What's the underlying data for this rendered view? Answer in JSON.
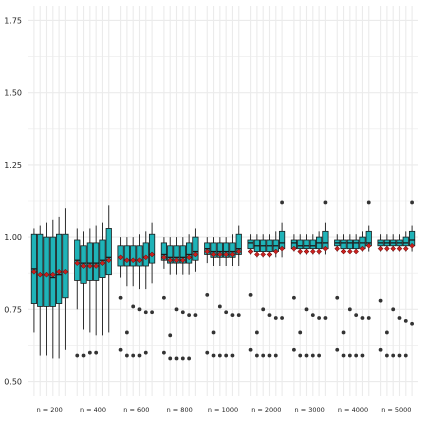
{
  "chart_data": {
    "type": "boxplot",
    "title": "",
    "xlabel": "",
    "ylabel": "",
    "ylim": [
      0.45,
      1.8
    ],
    "yticks": [
      "0.50",
      "0.75",
      "1.00",
      "1.25",
      "1.50",
      "1.75"
    ],
    "grid": true,
    "legend": "none",
    "groups": [
      {
        "label": "n = 200",
        "boxes": [
          {
            "whisker_low": 0.67,
            "q1": 0.77,
            "median": 0.89,
            "q3": 1.01,
            "whisker_high": 1.03,
            "mean": 0.88
          },
          {
            "whisker_low": 0.59,
            "q1": 0.76,
            "median": 0.87,
            "q3": 1.01,
            "whisker_high": 1.04,
            "mean": 0.87
          },
          {
            "whisker_low": 0.59,
            "q1": 0.76,
            "median": 0.87,
            "q3": 1.0,
            "whisker_high": 1.05,
            "mean": 0.87
          },
          {
            "whisker_low": 0.58,
            "q1": 0.76,
            "median": 0.86,
            "q3": 1.0,
            "whisker_high": 1.06,
            "mean": 0.87
          },
          {
            "whisker_low": 0.58,
            "q1": 0.77,
            "median": 0.87,
            "q3": 1.01,
            "whisker_high": 1.07,
            "mean": 0.88
          },
          {
            "whisker_low": 0.61,
            "q1": 0.79,
            "median": 0.88,
            "q3": 1.01,
            "whisker_high": 1.1,
            "mean": 0.88
          }
        ],
        "outliers": []
      },
      {
        "label": "n = 400",
        "boxes": [
          {
            "whisker_low": 0.75,
            "q1": 0.85,
            "median": 0.92,
            "q3": 0.99,
            "whisker_high": 1.03,
            "mean": 0.91
          },
          {
            "whisker_low": 0.68,
            "q1": 0.84,
            "median": 0.91,
            "q3": 0.97,
            "whisker_high": 1.02,
            "mean": 0.9
          },
          {
            "whisker_low": 0.67,
            "q1": 0.85,
            "median": 0.91,
            "q3": 0.98,
            "whisker_high": 1.03,
            "mean": 0.9
          },
          {
            "whisker_low": 0.66,
            "q1": 0.85,
            "median": 0.91,
            "q3": 0.98,
            "whisker_high": 1.04,
            "mean": 0.9
          },
          {
            "whisker_low": 0.66,
            "q1": 0.86,
            "median": 0.92,
            "q3": 0.99,
            "whisker_high": 1.05,
            "mean": 0.91
          },
          {
            "whisker_low": 0.67,
            "q1": 0.87,
            "median": 0.93,
            "q3": 1.03,
            "whisker_high": 1.11,
            "mean": 0.92
          }
        ],
        "outliers": [
          0.59,
          0.59,
          0.6,
          0.6
        ]
      },
      {
        "label": "n = 600",
        "boxes": [
          {
            "whisker_low": 0.86,
            "q1": 0.9,
            "median": 0.93,
            "q3": 0.97,
            "whisker_high": 1.0,
            "mean": 0.93
          },
          {
            "whisker_low": 0.83,
            "q1": 0.9,
            "median": 0.92,
            "q3": 0.97,
            "whisker_high": 1.0,
            "mean": 0.92
          },
          {
            "whisker_low": 0.83,
            "q1": 0.9,
            "median": 0.92,
            "q3": 0.97,
            "whisker_high": 1.0,
            "mean": 0.92
          },
          {
            "whisker_low": 0.82,
            "q1": 0.9,
            "median": 0.92,
            "q3": 0.97,
            "whisker_high": 1.01,
            "mean": 0.92
          },
          {
            "whisker_low": 0.82,
            "q1": 0.9,
            "median": 0.93,
            "q3": 0.98,
            "whisker_high": 1.02,
            "mean": 0.93
          },
          {
            "whisker_low": 0.84,
            "q1": 0.91,
            "median": 0.94,
            "q3": 1.01,
            "whisker_high": 1.05,
            "mean": 0.94
          }
        ],
        "outliers": [
          0.79,
          0.67,
          0.76,
          0.75,
          0.74,
          0.74,
          0.61,
          0.59,
          0.59,
          0.59,
          0.6
        ]
      },
      {
        "label": "n = 800",
        "boxes": [
          {
            "whisker_low": 0.89,
            "q1": 0.92,
            "median": 0.94,
            "q3": 0.98,
            "whisker_high": 1.0,
            "mean": 0.93
          },
          {
            "whisker_low": 0.87,
            "q1": 0.91,
            "median": 0.93,
            "q3": 0.97,
            "whisker_high": 1.0,
            "mean": 0.92
          },
          {
            "whisker_low": 0.87,
            "q1": 0.91,
            "median": 0.93,
            "q3": 0.97,
            "whisker_high": 1.0,
            "mean": 0.92
          },
          {
            "whisker_low": 0.87,
            "q1": 0.91,
            "median": 0.93,
            "q3": 0.97,
            "whisker_high": 1.0,
            "mean": 0.92
          },
          {
            "whisker_low": 0.87,
            "q1": 0.91,
            "median": 0.94,
            "q3": 0.98,
            "whisker_high": 1.01,
            "mean": 0.93
          },
          {
            "whisker_low": 0.88,
            "q1": 0.92,
            "median": 0.95,
            "q3": 1.0,
            "whisker_high": 1.03,
            "mean": 0.94
          }
        ],
        "outliers": [
          0.79,
          0.66,
          0.75,
          0.74,
          0.73,
          0.73,
          0.6,
          0.58,
          0.58,
          0.58,
          0.58
        ]
      },
      {
        "label": "n = 1000",
        "boxes": [
          {
            "whisker_low": 0.91,
            "q1": 0.94,
            "median": 0.96,
            "q3": 0.98,
            "whisker_high": 1.0,
            "mean": 0.95
          },
          {
            "whisker_low": 0.9,
            "q1": 0.93,
            "median": 0.95,
            "q3": 0.98,
            "whisker_high": 1.0,
            "mean": 0.94
          },
          {
            "whisker_low": 0.9,
            "q1": 0.93,
            "median": 0.95,
            "q3": 0.98,
            "whisker_high": 1.0,
            "mean": 0.94
          },
          {
            "whisker_low": 0.9,
            "q1": 0.93,
            "median": 0.95,
            "q3": 0.98,
            "whisker_high": 1.0,
            "mean": 0.94
          },
          {
            "whisker_low": 0.9,
            "q1": 0.93,
            "median": 0.95,
            "q3": 0.98,
            "whisker_high": 1.01,
            "mean": 0.94
          },
          {
            "whisker_low": 0.9,
            "q1": 0.94,
            "median": 0.96,
            "q3": 1.01,
            "whisker_high": 1.04,
            "mean": 0.95
          }
        ],
        "outliers": [
          0.8,
          0.67,
          0.76,
          0.74,
          0.73,
          0.73,
          0.6,
          0.59,
          0.59,
          0.59,
          0.59
        ]
      },
      {
        "label": "n = 2000",
        "boxes": [
          {
            "whisker_low": 0.94,
            "q1": 0.96,
            "median": 0.98,
            "q3": 0.99,
            "whisker_high": 1.01,
            "mean": 0.95
          },
          {
            "whisker_low": 0.93,
            "q1": 0.95,
            "median": 0.97,
            "q3": 0.99,
            "whisker_high": 1.01,
            "mean": 0.94
          },
          {
            "whisker_low": 0.93,
            "q1": 0.95,
            "median": 0.97,
            "q3": 0.99,
            "whisker_high": 1.01,
            "mean": 0.94
          },
          {
            "whisker_low": 0.93,
            "q1": 0.95,
            "median": 0.97,
            "q3": 0.99,
            "whisker_high": 1.01,
            "mean": 0.94
          },
          {
            "whisker_low": 0.93,
            "q1": 0.95,
            "median": 0.97,
            "q3": 0.99,
            "whisker_high": 1.02,
            "mean": 0.95
          },
          {
            "whisker_low": 0.93,
            "q1": 0.96,
            "median": 0.98,
            "q3": 1.02,
            "whisker_high": 1.05,
            "mean": 0.96
          }
        ],
        "outliers": [
          0.8,
          0.67,
          0.75,
          0.73,
          0.72,
          0.72,
          0.61,
          0.59,
          0.59,
          0.59,
          0.59,
          1.12
        ]
      },
      {
        "label": "n = 3000",
        "boxes": [
          {
            "whisker_low": 0.95,
            "q1": 0.96,
            "median": 0.98,
            "q3": 0.99,
            "whisker_high": 1.01,
            "mean": 0.96
          },
          {
            "whisker_low": 0.94,
            "q1": 0.96,
            "median": 0.97,
            "q3": 0.99,
            "whisker_high": 1.01,
            "mean": 0.95
          },
          {
            "whisker_low": 0.94,
            "q1": 0.96,
            "median": 0.97,
            "q3": 0.99,
            "whisker_high": 1.01,
            "mean": 0.95
          },
          {
            "whisker_low": 0.94,
            "q1": 0.96,
            "median": 0.97,
            "q3": 0.99,
            "whisker_high": 1.01,
            "mean": 0.95
          },
          {
            "whisker_low": 0.94,
            "q1": 0.96,
            "median": 0.98,
            "q3": 1.0,
            "whisker_high": 1.02,
            "mean": 0.95
          },
          {
            "whisker_low": 0.94,
            "q1": 0.96,
            "median": 0.98,
            "q3": 1.02,
            "whisker_high": 1.05,
            "mean": 0.96
          }
        ],
        "outliers": [
          0.79,
          0.67,
          0.75,
          0.73,
          0.72,
          0.72,
          0.61,
          0.59,
          0.59,
          0.59,
          0.59,
          1.12
        ]
      },
      {
        "label": "n = 4000",
        "boxes": [
          {
            "whisker_low": 0.95,
            "q1": 0.97,
            "median": 0.98,
            "q3": 0.99,
            "whisker_high": 1.01,
            "mean": 0.96
          },
          {
            "whisker_low": 0.95,
            "q1": 0.96,
            "median": 0.98,
            "q3": 0.99,
            "whisker_high": 1.01,
            "mean": 0.95
          },
          {
            "whisker_low": 0.95,
            "q1": 0.96,
            "median": 0.98,
            "q3": 0.99,
            "whisker_high": 1.01,
            "mean": 0.95
          },
          {
            "whisker_low": 0.95,
            "q1": 0.96,
            "median": 0.98,
            "q3": 0.99,
            "whisker_high": 1.01,
            "mean": 0.95
          },
          {
            "whisker_low": 0.95,
            "q1": 0.96,
            "median": 0.98,
            "q3": 1.0,
            "whisker_high": 1.02,
            "mean": 0.96
          },
          {
            "whisker_low": 0.95,
            "q1": 0.97,
            "median": 0.98,
            "q3": 1.02,
            "whisker_high": 1.04,
            "mean": 0.97
          }
        ],
        "outliers": [
          0.79,
          0.67,
          0.75,
          0.73,
          0.72,
          0.72,
          0.61,
          0.59,
          0.59,
          0.59,
          0.59,
          1.12
        ]
      },
      {
        "label": "n = 5000",
        "boxes": [
          {
            "whisker_low": 0.95,
            "q1": 0.97,
            "median": 0.98,
            "q3": 0.99,
            "whisker_high": 1.01,
            "mean": 0.96
          },
          {
            "whisker_low": 0.95,
            "q1": 0.97,
            "median": 0.98,
            "q3": 0.99,
            "whisker_high": 1.01,
            "mean": 0.96
          },
          {
            "whisker_low": 0.95,
            "q1": 0.97,
            "median": 0.98,
            "q3": 0.99,
            "whisker_high": 1.01,
            "mean": 0.96
          },
          {
            "whisker_low": 0.95,
            "q1": 0.97,
            "median": 0.98,
            "q3": 0.99,
            "whisker_high": 1.01,
            "mean": 0.96
          },
          {
            "whisker_low": 0.95,
            "q1": 0.97,
            "median": 0.98,
            "q3": 1.0,
            "whisker_high": 1.02,
            "mean": 0.96
          },
          {
            "whisker_low": 0.95,
            "q1": 0.97,
            "median": 0.99,
            "q3": 1.02,
            "whisker_high": 1.04,
            "mean": 0.97
          }
        ],
        "outliers": [
          0.78,
          0.67,
          0.75,
          0.72,
          0.71,
          0.7,
          0.61,
          0.59,
          0.59,
          0.59,
          0.59,
          1.12
        ]
      }
    ],
    "colors": {
      "box_fill": "#1fb3b8",
      "box_border": "#1a1a1a",
      "mean_marker": "#c8201e",
      "outlier": "#333333",
      "gridline": "#ebebeb",
      "background": "#ffffff"
    }
  }
}
